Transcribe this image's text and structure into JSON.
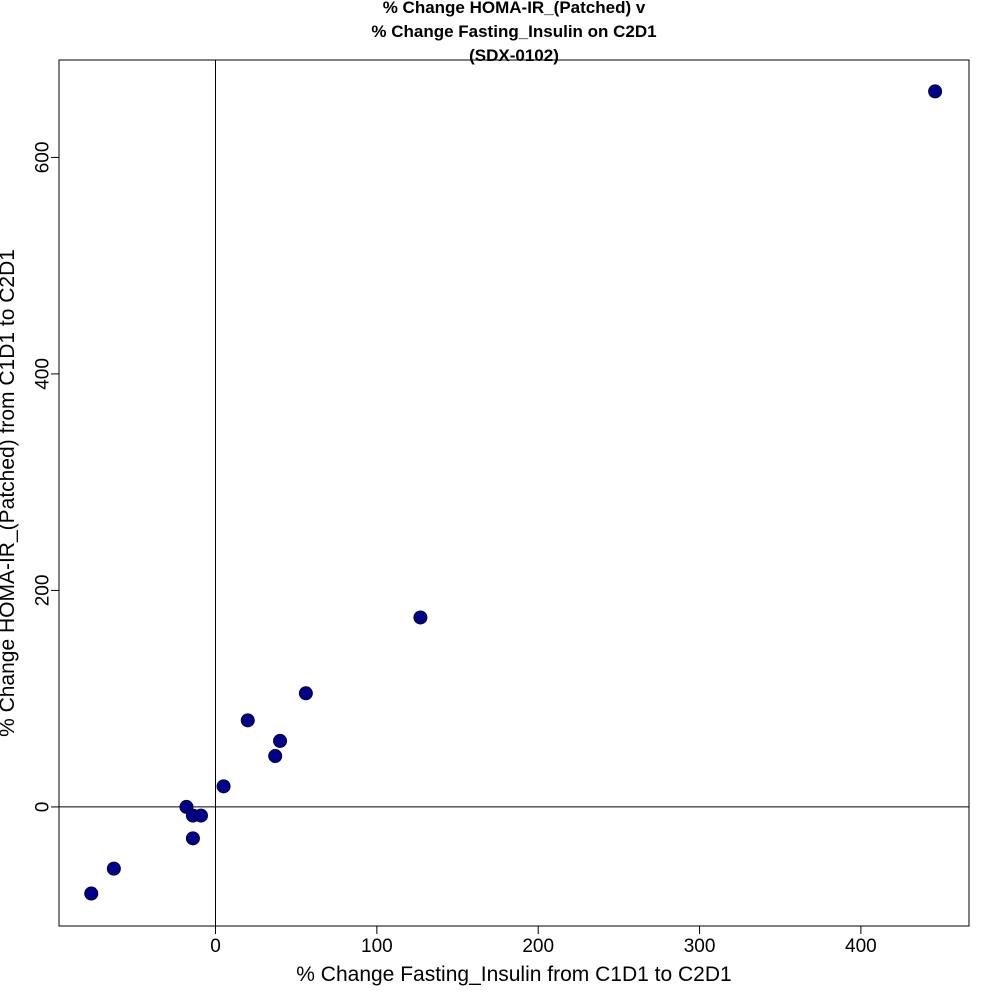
{
  "chart_data": {
    "type": "scatter",
    "title_lines": [
      "% Change HOMA-IR_(Patched) v",
      "% Change Fasting_Insulin on C2D1",
      "(SDX-0102)"
    ],
    "xlabel": "% Change Fasting_Insulin from C1D1 to C2D1",
    "ylabel": "% Change HOMA-IR_(Patched) from C1D1 to C2D1",
    "xlim": [
      -97,
      467
    ],
    "ylim": [
      -110,
      690
    ],
    "x_ticks": [
      0,
      100,
      200,
      300,
      400
    ],
    "y_ticks": [
      0,
      200,
      400,
      600
    ],
    "reference_lines": {
      "x": 0,
      "y": 0
    },
    "grid": false,
    "legend": "none",
    "marker_color": "#00008B",
    "points": [
      {
        "x": 446,
        "y": 661
      },
      {
        "x": 127,
        "y": 175
      },
      {
        "x": 56,
        "y": 105
      },
      {
        "x": 20,
        "y": 80
      },
      {
        "x": 40,
        "y": 61
      },
      {
        "x": 37,
        "y": 47
      },
      {
        "x": 5,
        "y": 19
      },
      {
        "x": -18,
        "y": 0
      },
      {
        "x": -14,
        "y": -8
      },
      {
        "x": -9,
        "y": -8
      },
      {
        "x": -14,
        "y": -29
      },
      {
        "x": -63,
        "y": -57
      },
      {
        "x": -77,
        "y": -80
      }
    ]
  }
}
